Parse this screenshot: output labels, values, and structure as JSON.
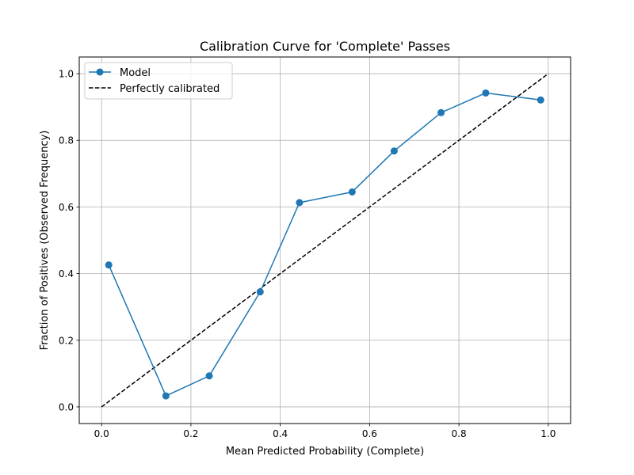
{
  "chart_data": {
    "type": "line",
    "title": "Calibration Curve for 'Complete' Passes",
    "xlabel": "Mean Predicted Probability (Complete)",
    "ylabel": "Fraction of Positives (Observed Frequency)",
    "xlim": [
      -0.05,
      1.05
    ],
    "ylim": [
      -0.05,
      1.05
    ],
    "x_ticks": [
      0.0,
      0.2,
      0.4,
      0.6,
      0.8,
      1.0
    ],
    "y_ticks": [
      0.0,
      0.2,
      0.4,
      0.6,
      0.8,
      1.0
    ],
    "x_tick_labels": [
      "0.0",
      "0.2",
      "0.4",
      "0.6",
      "0.8",
      "1.0"
    ],
    "y_tick_labels": [
      "0.0",
      "0.2",
      "0.4",
      "0.6",
      "0.8",
      "1.0"
    ],
    "grid": true,
    "legend_position": "top-left",
    "series": [
      {
        "name": "Model",
        "color": "#1f77b4",
        "style": "solid-with-markers",
        "x": [
          0.016,
          0.144,
          0.241,
          0.355,
          0.443,
          0.561,
          0.655,
          0.76,
          0.86,
          0.983
        ],
        "y": [
          0.426,
          0.033,
          0.093,
          0.345,
          0.613,
          0.645,
          0.768,
          0.883,
          0.942,
          0.921
        ]
      },
      {
        "name": "Perfectly calibrated",
        "color": "#000000",
        "style": "dashed",
        "x": [
          0.0,
          1.0
        ],
        "y": [
          0.0,
          1.0
        ]
      }
    ]
  }
}
